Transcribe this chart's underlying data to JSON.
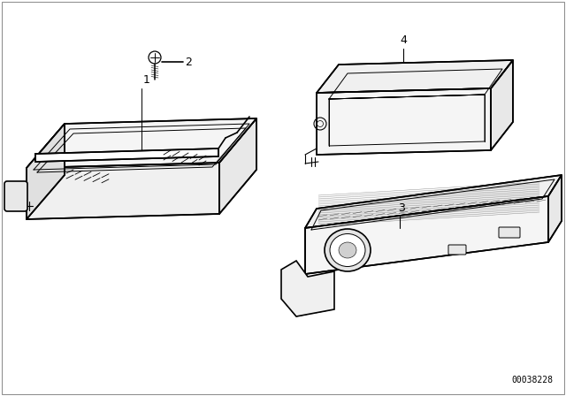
{
  "background_color": "#ffffff",
  "line_color": "#000000",
  "diagram_id": "00038228",
  "lw_main": 1.2,
  "lw_inner": 0.7,
  "lw_thin": 0.4
}
